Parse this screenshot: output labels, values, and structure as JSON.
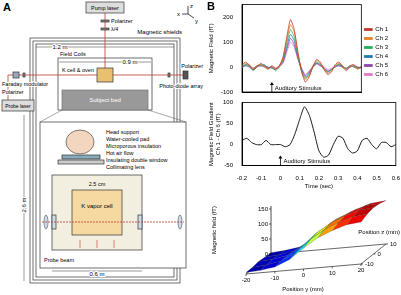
{
  "panel_a": {
    "label": "A",
    "texts": {
      "pump_laser": "Pump laser",
      "pump_polarizer": "Polarizer",
      "quarter_wave": "λ/4",
      "width_shield": "1.2 m",
      "magnetic_shields": "Magnetic shields",
      "field_coils": "Field Coils",
      "width_coils": "0.9 m",
      "k_cell": "K cell & oven",
      "photodiode": "Photo-diode array",
      "probe_polarizer_right": "Polarizer",
      "faraday": "Faraday modulator",
      "probe_polarizer_left": "Polarizer",
      "probe_laser": "Probe laser",
      "height_shield": "2.6 m",
      "subject_bed": "Subject bed",
      "head_support": "Head support",
      "water_pad": "Water-cooled pad",
      "insulation": "Microporous insulation",
      "hot_air": "Hot air flow",
      "window": "Insulating double window",
      "lens": "Collimating lens",
      "cell_size": "2.5 cm",
      "vapor_cell": "K vapor cell",
      "probe_beam": "Probe beam",
      "width_inset": "0.6 m",
      "axis_x": "x",
      "axis_y": "y",
      "axis_z": "z"
    }
  },
  "panel_b_label": "B",
  "chart_data": [
    {
      "type": "line",
      "y_label": "Magnetic Field (fT)",
      "x": [
        -0.2,
        -0.175,
        -0.15,
        -0.125,
        -0.1,
        -0.075,
        -0.05,
        -0.025,
        0,
        0.025,
        0.05,
        0.075,
        0.1,
        0.125,
        0.15,
        0.175,
        0.2,
        0.225,
        0.25,
        0.275,
        0.3,
        0.325,
        0.35,
        0.375,
        0.4,
        0.425,
        0.45,
        0.475,
        0.5,
        0.525,
        0.55,
        0.575,
        0.6
      ],
      "xlim": [
        -0.2,
        0.6
      ],
      "xticks": [
        -0.2,
        -0.1,
        0,
        0.1,
        0.2,
        0.3,
        0.4,
        0.5,
        0.6
      ],
      "ylim": [
        -100,
        250
      ],
      "yticks": [
        -100,
        0,
        100,
        200
      ],
      "tick_labels": "y",
      "legend": "right",
      "grid": false,
      "annotation": {
        "text": "Auditory Stimulus",
        "x": 0
      },
      "series": [
        {
          "name": "Ch 1",
          "color": "#c0392b",
          "values": [
            10,
            20,
            5,
            -10,
            0,
            15,
            5,
            -5,
            0,
            -10,
            5,
            40,
            120,
            190,
            150,
            60,
            -20,
            -60,
            -40,
            0,
            30,
            20,
            -10,
            -30,
            -20,
            10,
            20,
            0,
            -15,
            5,
            10,
            -5,
            0
          ]
        },
        {
          "name": "Ch 2",
          "color": "#e67e22",
          "values": [
            5,
            15,
            10,
            -5,
            5,
            10,
            0,
            -10,
            5,
            -5,
            0,
            35,
            105,
            170,
            140,
            55,
            -15,
            -50,
            -35,
            5,
            25,
            15,
            -5,
            -25,
            -15,
            5,
            15,
            5,
            -10,
            0,
            5,
            -10,
            5
          ]
        },
        {
          "name": "Ch 3",
          "color": "#27ae60",
          "values": [
            0,
            10,
            5,
            -15,
            5,
            5,
            10,
            -5,
            0,
            -15,
            0,
            30,
            95,
            150,
            120,
            45,
            -20,
            -45,
            -30,
            0,
            20,
            10,
            -10,
            -20,
            -10,
            5,
            10,
            0,
            -5,
            5,
            0,
            -5,
            0
          ]
        },
        {
          "name": "Ch 4",
          "color": "#1f77b4",
          "values": [
            5,
            5,
            0,
            -10,
            0,
            10,
            5,
            0,
            -5,
            -10,
            5,
            25,
            80,
            130,
            105,
            40,
            -10,
            -40,
            -25,
            5,
            15,
            10,
            -5,
            -20,
            -10,
            0,
            10,
            5,
            -10,
            0,
            5,
            0,
            -5
          ]
        },
        {
          "name": "Ch 5",
          "color": "#8e44ad",
          "values": [
            -5,
            10,
            5,
            -5,
            5,
            5,
            0,
            -5,
            5,
            -5,
            0,
            20,
            70,
            115,
            90,
            35,
            -10,
            -35,
            -20,
            0,
            15,
            5,
            -5,
            -15,
            -10,
            5,
            5,
            0,
            -5,
            5,
            0,
            -5,
            0
          ]
        },
        {
          "name": "Ch 6",
          "color": "#e377c2",
          "values": [
            0,
            5,
            0,
            -10,
            0,
            5,
            5,
            -5,
            0,
            -5,
            5,
            15,
            60,
            100,
            80,
            30,
            -5,
            -30,
            -15,
            0,
            10,
            5,
            0,
            -10,
            -5,
            0,
            5,
            0,
            -5,
            0,
            5,
            0,
            0
          ]
        }
      ]
    },
    {
      "type": "line",
      "y_label": [
        "Magnetic Field Gradient",
        "Ch 1 - Ch 6 (fT)"
      ],
      "x_label": "Time (sec)",
      "x": [
        -0.2,
        -0.175,
        -0.15,
        -0.125,
        -0.1,
        -0.075,
        -0.05,
        -0.025,
        0,
        0.025,
        0.05,
        0.075,
        0.1,
        0.125,
        0.15,
        0.175,
        0.2,
        0.225,
        0.25,
        0.275,
        0.3,
        0.325,
        0.35,
        0.375,
        0.4,
        0.425,
        0.45,
        0.475,
        0.5,
        0.525,
        0.55,
        0.575,
        0.6
      ],
      "xlim": [
        -0.2,
        0.6
      ],
      "xticks": [
        -0.2,
        -0.1,
        0,
        0.1,
        0.2,
        0.3,
        0.4,
        0.5,
        0.6
      ],
      "ylim": [
        -50,
        100
      ],
      "yticks": [
        -50,
        0,
        50,
        100
      ],
      "grid": false,
      "annotation": {
        "text": "Auditory Stimulus",
        "x": 0
      },
      "color": "#000000",
      "values": [
        10,
        15,
        5,
        0,
        0,
        10,
        0,
        0,
        0,
        -5,
        0,
        25,
        60,
        90,
        70,
        30,
        -15,
        -30,
        -25,
        0,
        20,
        15,
        -10,
        -20,
        -15,
        10,
        15,
        0,
        -10,
        5,
        5,
        -5,
        0
      ]
    },
    {
      "type": "surface",
      "x_label": "Position y (mm)",
      "y_label": "Position z (mm)",
      "z_label": "Magnetic field (fT)",
      "x": [
        -20,
        -15,
        -10,
        -5,
        0,
        5,
        10,
        15,
        20
      ],
      "y": [
        -10,
        -5,
        0,
        5,
        10
      ],
      "xlim": [
        -20,
        20
      ],
      "xticks": [
        -20,
        -10,
        0,
        10,
        20
      ],
      "ylim": [
        -10,
        10
      ],
      "yticks": [
        -10,
        0,
        10
      ],
      "zlim": [
        0,
        160
      ],
      "zticks": [
        0,
        50,
        100,
        150
      ],
      "values": [
        [
          5,
          8,
          15,
          35,
          70,
          100,
          120,
          135,
          140
        ],
        [
          5,
          10,
          18,
          40,
          80,
          110,
          130,
          145,
          150
        ],
        [
          8,
          12,
          20,
          45,
          85,
          115,
          135,
          150,
          155
        ],
        [
          6,
          10,
          18,
          42,
          82,
          112,
          132,
          148,
          152
        ],
        [
          4,
          8,
          15,
          38,
          75,
          105,
          125,
          140,
          145
        ]
      ]
    }
  ]
}
